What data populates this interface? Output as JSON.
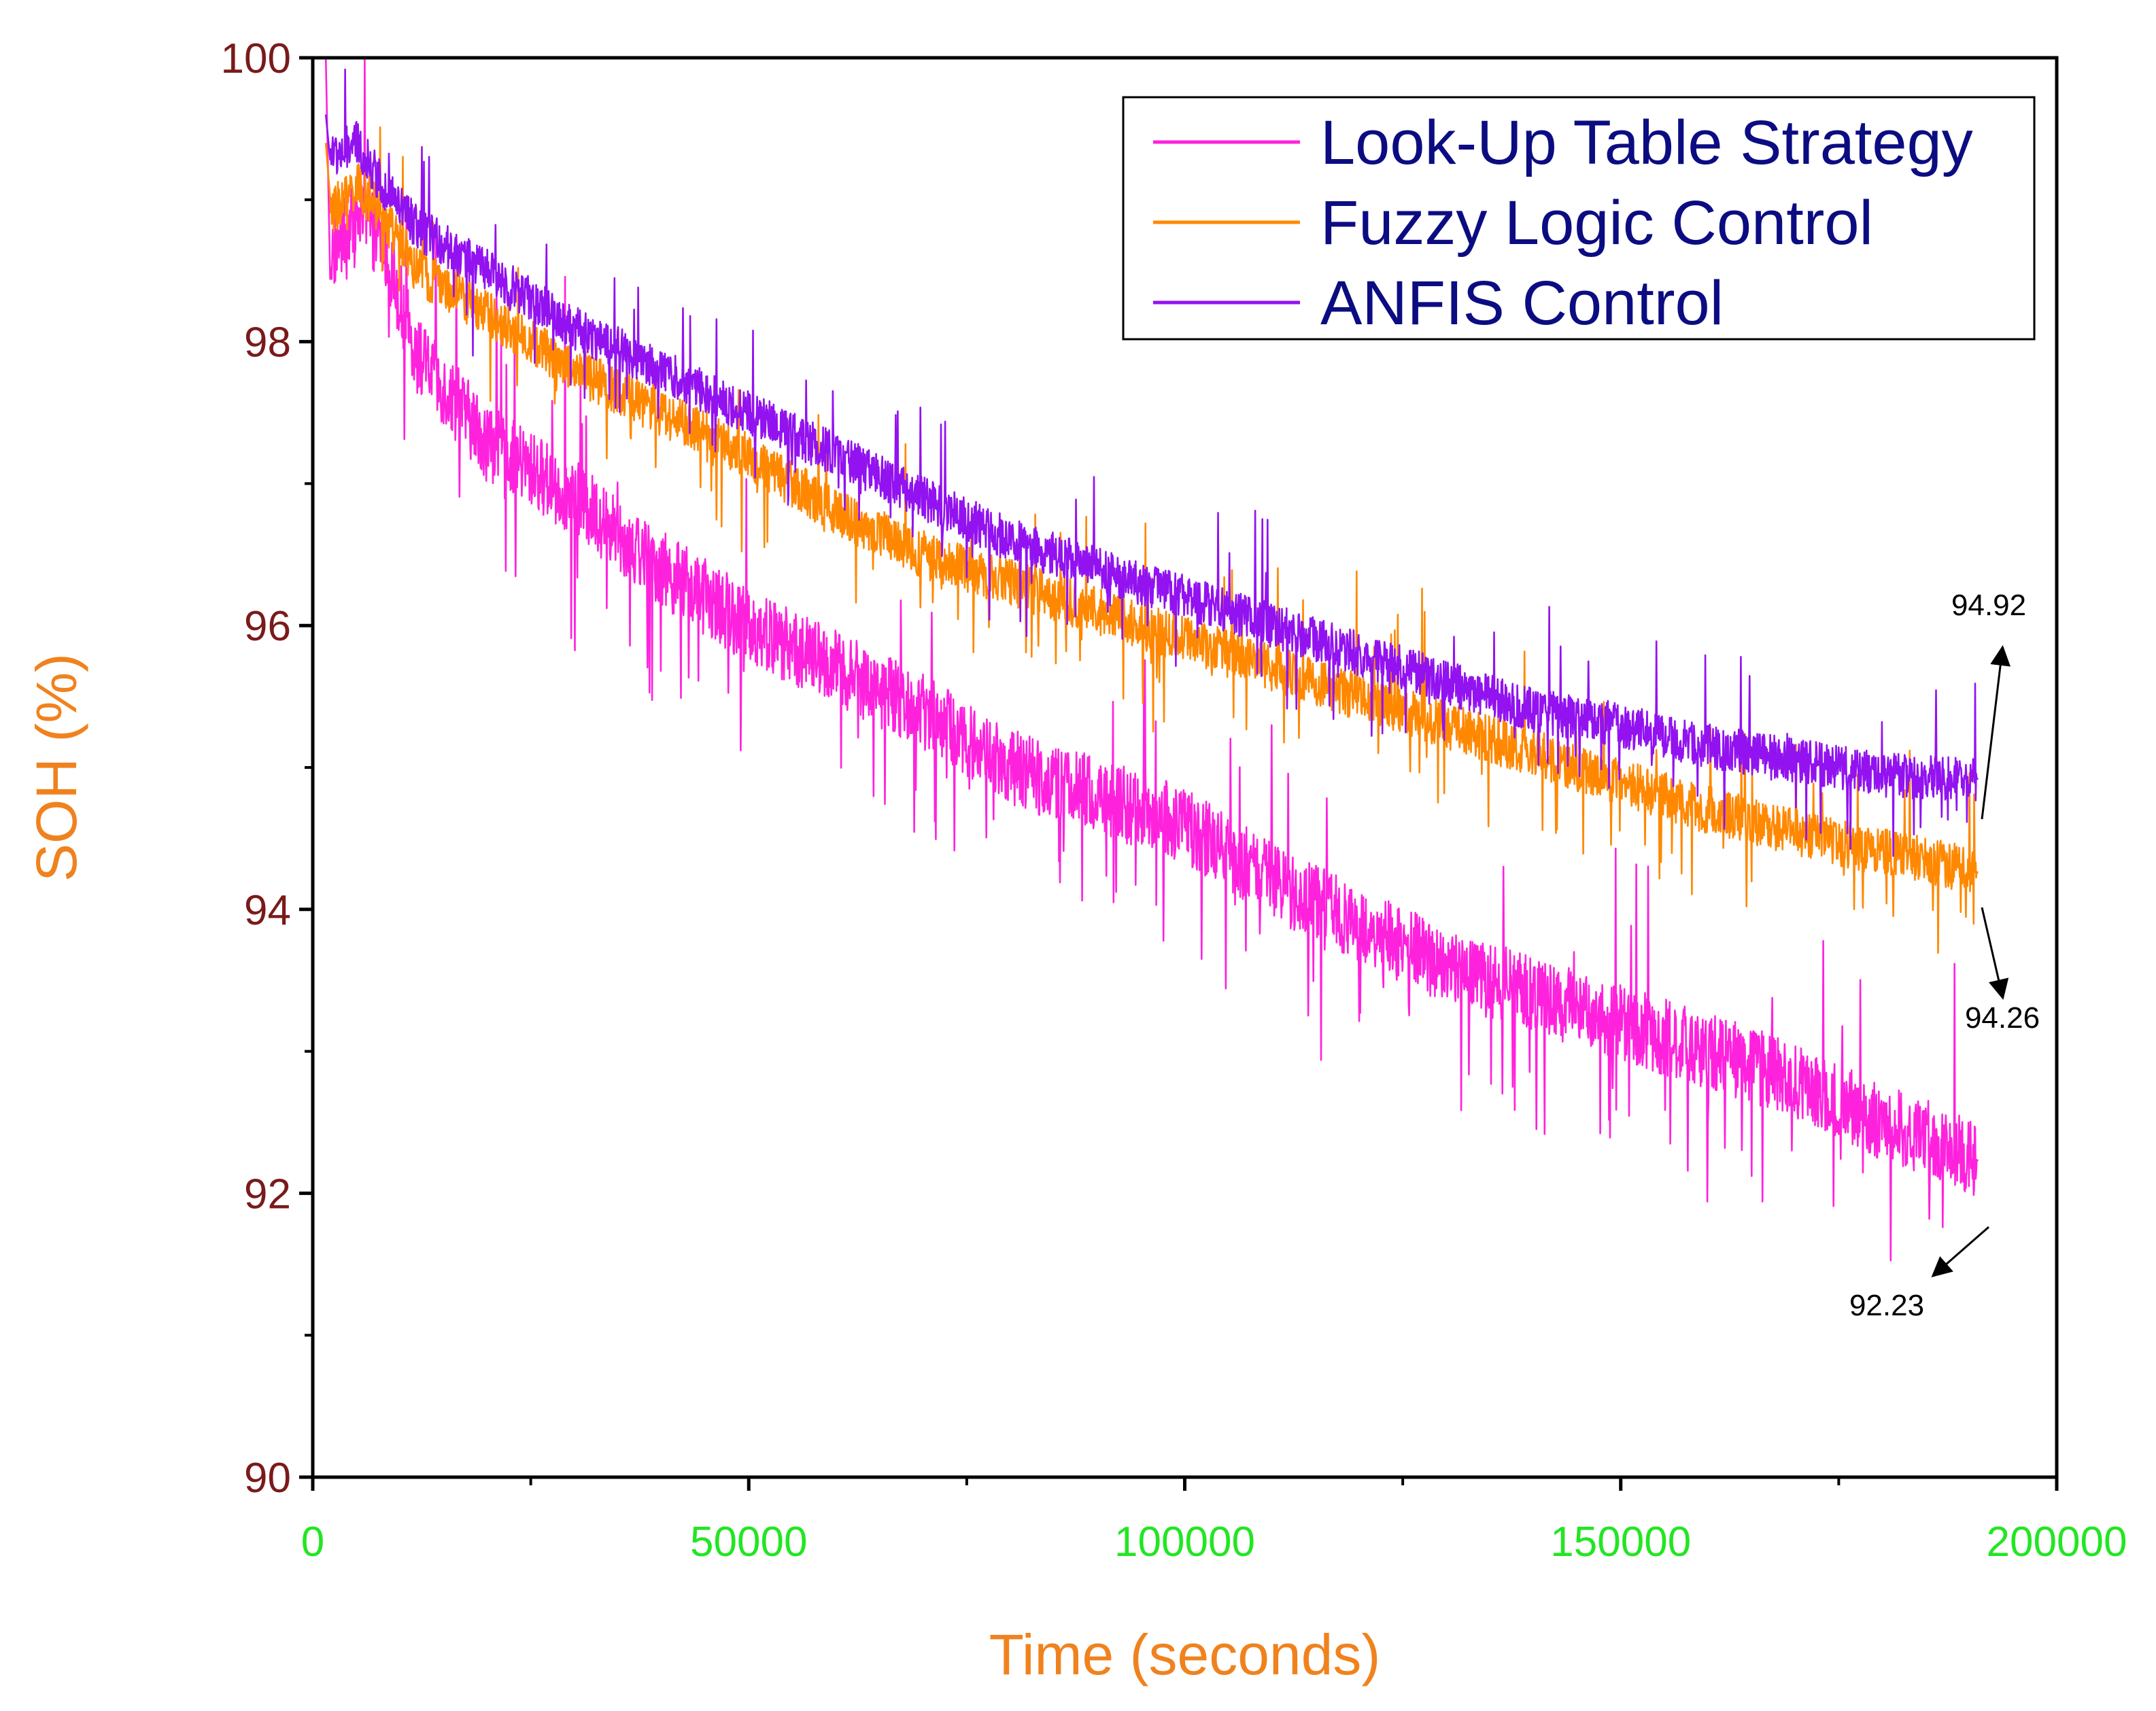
{
  "chart_data": {
    "type": "line",
    "title": "",
    "xlabel": "Time (seconds)",
    "ylabel": "SOH (%)",
    "xlim": [
      0,
      200000
    ],
    "ylim": [
      90,
      100
    ],
    "x_ticks": [
      0,
      50000,
      100000,
      150000,
      200000
    ],
    "x_tick_labels": [
      "0",
      "50000",
      "100000",
      "150000",
      "200000"
    ],
    "y_ticks": [
      90,
      92,
      94,
      96,
      98,
      100
    ],
    "y_tick_labels": [
      "90",
      "92",
      "94",
      "96",
      "98",
      "100"
    ],
    "grid": false,
    "legend_position": "top-right",
    "colors": {
      "ylabel": "#f0821e",
      "xlabel": "#f0821e",
      "ytick": "#7a1a1a",
      "xtick": "#22e622",
      "legend_text": "#0c0c82",
      "axis": "#000000"
    },
    "series": [
      {
        "name": "Look-Up Table Strategy",
        "color": "#ff22dd",
        "x": [
          0,
          2000,
          5000,
          8000,
          12000,
          20000,
          30000,
          40000,
          50000,
          60000,
          70000,
          80000,
          90000,
          100000,
          110000,
          120000,
          130000,
          140000,
          150000,
          160000,
          170000,
          180000,
          185000,
          191000
        ],
        "values": [
          100,
          98.6,
          98.9,
          98.7,
          97.9,
          97.3,
          96.9,
          96.4,
          96.0,
          95.7,
          95.4,
          95.0,
          94.8,
          94.6,
          94.2,
          93.9,
          93.6,
          93.4,
          93.2,
          93.0,
          92.8,
          92.5,
          92.4,
          92.23
        ],
        "noise_amplitude": 0.45
      },
      {
        "name": "Fuzzy Logic Control",
        "color": "#ff8800",
        "x": [
          0,
          2000,
          5000,
          8000,
          12000,
          20000,
          30000,
          40000,
          50000,
          60000,
          70000,
          80000,
          90000,
          100000,
          110000,
          120000,
          130000,
          140000,
          150000,
          160000,
          170000,
          180000,
          185000,
          191000
        ],
        "values": [
          99.4,
          98.9,
          99.1,
          98.9,
          98.5,
          98.2,
          97.8,
          97.5,
          97.2,
          96.8,
          96.5,
          96.3,
          96.1,
          95.9,
          95.7,
          95.5,
          95.3,
          95.1,
          94.9,
          94.7,
          94.55,
          94.4,
          94.35,
          94.26
        ],
        "noise_amplitude": 0.28
      },
      {
        "name": "ANFIS Control",
        "color": "#9212f0",
        "x": [
          0,
          2000,
          5000,
          8000,
          12000,
          20000,
          30000,
          40000,
          50000,
          60000,
          70000,
          80000,
          90000,
          100000,
          110000,
          120000,
          130000,
          140000,
          150000,
          160000,
          170000,
          180000,
          185000,
          191000
        ],
        "values": [
          99.6,
          99.3,
          99.4,
          99.1,
          98.8,
          98.5,
          98.1,
          97.8,
          97.5,
          97.2,
          96.9,
          96.6,
          96.4,
          96.2,
          96.0,
          95.8,
          95.6,
          95.4,
          95.3,
          95.15,
          95.05,
          94.95,
          94.93,
          94.92
        ],
        "noise_amplitude": 0.26
      }
    ],
    "annotations": [
      {
        "text": "94.92",
        "x": 191000,
        "y": 94.92
      },
      {
        "text": "94.26",
        "x": 191000,
        "y": 94.26
      },
      {
        "text": "92.23",
        "x": 191000,
        "y": 92.23
      }
    ]
  }
}
